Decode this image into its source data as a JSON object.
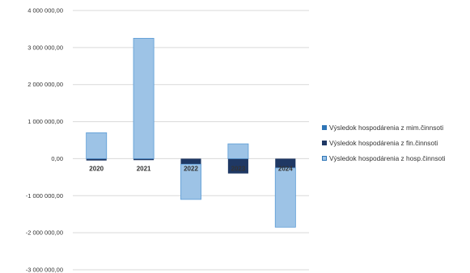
{
  "chart_data": {
    "type": "bar",
    "stacked": true,
    "title": "",
    "xlabel": "",
    "ylabel": "",
    "categories": [
      "2020",
      "2021",
      "2022",
      "2023",
      "2024"
    ],
    "ylim": [
      -3000000,
      4000000
    ],
    "yticks": [
      4000000,
      3000000,
      2000000,
      1000000,
      0,
      -1000000,
      -2000000,
      -3000000
    ],
    "ytick_labels": [
      "4 000 000,00",
      "3 000 000,00",
      "2 000 000,00",
      "1 000 000,00",
      "0,00",
      "-1 000 000,00",
      "-2 000 000,00",
      "-3 000 000,00"
    ],
    "grid": true,
    "legend_position": "right",
    "series": [
      {
        "name": "Výsledok hospodárenia z mim.činnsoti",
        "color": "#2e75b6",
        "values": [
          0,
          0,
          0,
          0,
          0
        ]
      },
      {
        "name": "Výsledok hospodárenia z fin.činnsoti",
        "color": "#1f3864",
        "values": [
          -50000,
          -40000,
          -150000,
          -400000,
          -250000
        ]
      },
      {
        "name": "Výsledok hospodárenia z hosp.činnsoti",
        "color": "#9dc3e6",
        "values": [
          700000,
          3250000,
          -950000,
          400000,
          -1600000
        ]
      }
    ]
  }
}
